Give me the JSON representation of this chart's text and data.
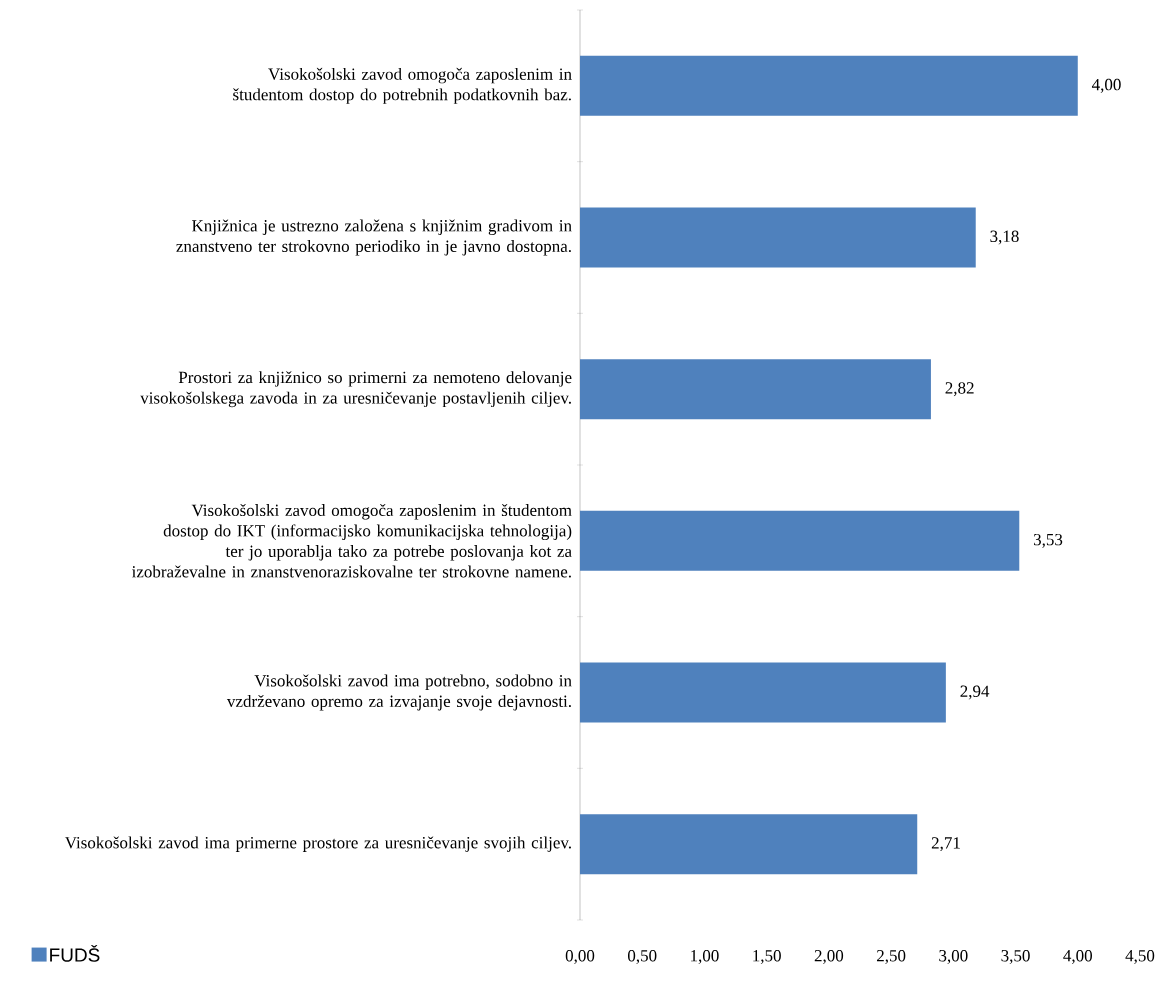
{
  "chart_data": {
    "type": "bar",
    "orientation": "horizontal",
    "categories": [
      "Visokošolski zavod omogoča zaposlenim in študentom dostop do potrebnih podatkovnih baz.",
      "Knjižnica je ustrezno založena s knjižnim gradivom in znanstveno ter strokovno periodiko in je javno dostopna.",
      "Prostori za knjižnico so primerni za nemoteno delovanje visokošolskega zavoda in za uresničevanje postavljenih ciljev.",
      "Visokošolski zavod omogoča zaposlenim in študentom dostop do IKT (informacijsko komunikacijska tehnologija) ter jo uporablja tako za potrebe poslovanja kot za izobraževalne in znanstvenoraziskovalne ter strokovne namene.",
      "Visokošolski zavod ima potrebno, sodobno in vzdrževano opremo za izvajanje svoje dejavnosti.",
      "Visokošolski zavod ima primerne prostore za uresničevanje svojih ciljev."
    ],
    "series": [
      {
        "name": "FUDŠ",
        "color": "#4f81bd",
        "values": [
          4.0,
          3.18,
          2.82,
          3.53,
          2.94,
          2.71
        ],
        "value_labels": [
          "4,00",
          "3,18",
          "2,82",
          "3,53",
          "2,94",
          "2,71"
        ]
      }
    ],
    "xlim": [
      0,
      4.5
    ],
    "xticks": [
      {
        "value": 0,
        "label": "0,00"
      },
      {
        "value": 0.5,
        "label": "0,50"
      },
      {
        "value": 1,
        "label": "1,00"
      },
      {
        "value": 1.5,
        "label": "1,50"
      },
      {
        "value": 2,
        "label": "2,00"
      },
      {
        "value": 2.5,
        "label": "2,50"
      },
      {
        "value": 3,
        "label": "3,00"
      },
      {
        "value": 3.5,
        "label": "3,50"
      },
      {
        "value": 4,
        "label": "4,00"
      },
      {
        "value": 4.5,
        "label": "4,50"
      }
    ],
    "grid": false,
    "legend": "bottom left"
  }
}
